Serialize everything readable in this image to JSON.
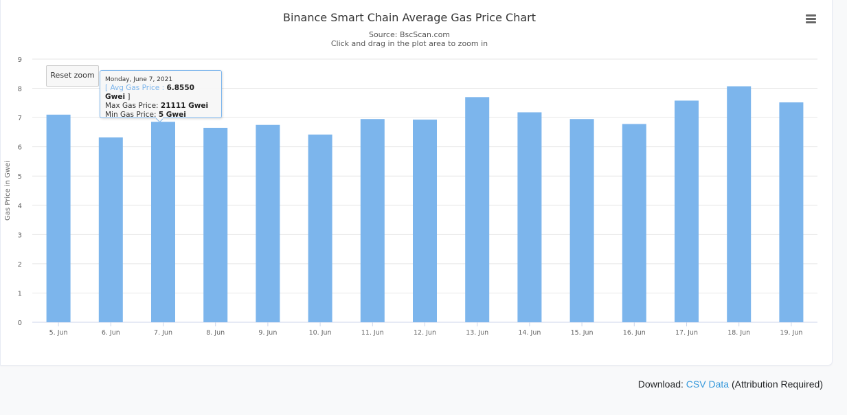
{
  "chart": {
    "title": "Binance Smart Chain Average Gas Price Chart",
    "source": "Source: BscScan.com",
    "hint": "Click and drag in the plot area to zoom in",
    "reset_zoom_label": "Reset zoom",
    "menu_icon": "hamburger-menu-icon"
  },
  "tooltip": {
    "date": "Monday, June 7, 2021",
    "avg_label": "Avg Gas Price :",
    "avg_value": "6.8550 Gwei",
    "open_bracket": "[",
    "close_bracket": "]",
    "max_label": "Max Gas Price:",
    "max_value": "21111 Gwei",
    "min_label": "Min Gas Price:",
    "min_value": "5 Gwei"
  },
  "download": {
    "prefix": "Download:",
    "link": "CSV Data",
    "suffix": "(Attribution Required)"
  },
  "colors": {
    "bar": "#7cb5ec",
    "grid": "#e6e6e6",
    "link": "#3498db"
  },
  "chart_data": {
    "type": "bar",
    "title": "Binance Smart Chain Average Gas Price Chart",
    "subtitle": "Source: BscScan.com",
    "xlabel": "",
    "ylabel": "Gas Price in Gwei",
    "ylim": [
      0,
      9
    ],
    "yticks": [
      "0",
      "1",
      "2",
      "3",
      "4",
      "5",
      "6",
      "7",
      "8",
      "9"
    ],
    "grid": true,
    "legend": "none",
    "categories": [
      "5. Jun",
      "6. Jun",
      "7. Jun",
      "8. Jun",
      "9. Jun",
      "10. Jun",
      "11. Jun",
      "12. Jun",
      "13. Jun",
      "14. Jun",
      "15. Jun",
      "16. Jun",
      "17. Jun",
      "18. Jun",
      "19. Jun"
    ],
    "series": [
      {
        "values": [
          7.1,
          6.32,
          6.855,
          6.65,
          6.75,
          6.42,
          6.95,
          6.93,
          7.7,
          7.18,
          6.95,
          6.78,
          7.58,
          8.07,
          7.52
        ]
      }
    ]
  }
}
